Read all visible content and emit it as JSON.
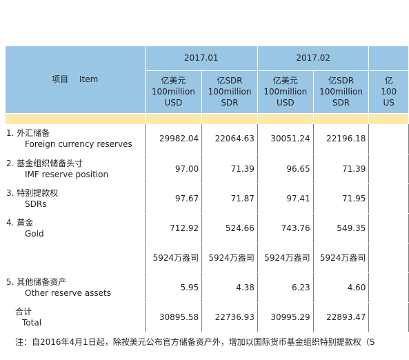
{
  "header": {
    "item_label": "项目　 Item",
    "months": [
      "2017.01",
      "2017.02",
      ""
    ],
    "units": [
      {
        "cn": "亿美元",
        "en1": "100million",
        "en2": "USD"
      },
      {
        "cn": "亿SDR",
        "en1": "100million",
        "en2": "SDR"
      },
      {
        "cn": "亿美元",
        "en1": "100million",
        "en2": "USD"
      },
      {
        "cn": "亿SDR",
        "en1": "100million",
        "en2": "SDR"
      },
      {
        "cn": "亿",
        "en1": "100",
        "en2": "US"
      }
    ]
  },
  "rows": [
    {
      "cn": "1. 外汇储备",
      "en": "Foreign currency reserves",
      "v1": "29982.04",
      "v2": "22064.63",
      "v3": "30051.24",
      "v4": "22196.18"
    },
    {
      "cn": "2. 基金组织储备头寸",
      "en": "IMF reserve position",
      "v1": "97.00",
      "v2": "71.39",
      "v3": "96.65",
      "v4": "71.39"
    },
    {
      "cn": "3. 特别提款权",
      "en": "SDRs",
      "v1": "97.67",
      "v2": "71.87",
      "v3": "97.41",
      "v4": "71.95"
    },
    {
      "cn": "4. 黄金",
      "en": "Gold",
      "v1": "712.92",
      "v2": "524.66",
      "v3": "743.76",
      "v4": "549.35"
    },
    {
      "cn": "",
      "en": "",
      "v1": "5924万盎司",
      "v2": "5924万盎司",
      "v3": "5924万盎司",
      "v4": "5924万盎司"
    },
    {
      "cn": "5. 其他储备资产",
      "en": "Other reserve assets",
      "v1": "5.95",
      "v2": "4.38",
      "v3": "6.23",
      "v4": "4.60"
    },
    {
      "cn": "合计",
      "en": "Total",
      "v1": "30895.58",
      "v2": "22736.93",
      "v3": "30995.29",
      "v4": "22893.47"
    }
  ],
  "note": "注：自2016年4月1日起，除按美元公布官方储备资产外，增加以国际货币基金组织特别提款权（S"
}
